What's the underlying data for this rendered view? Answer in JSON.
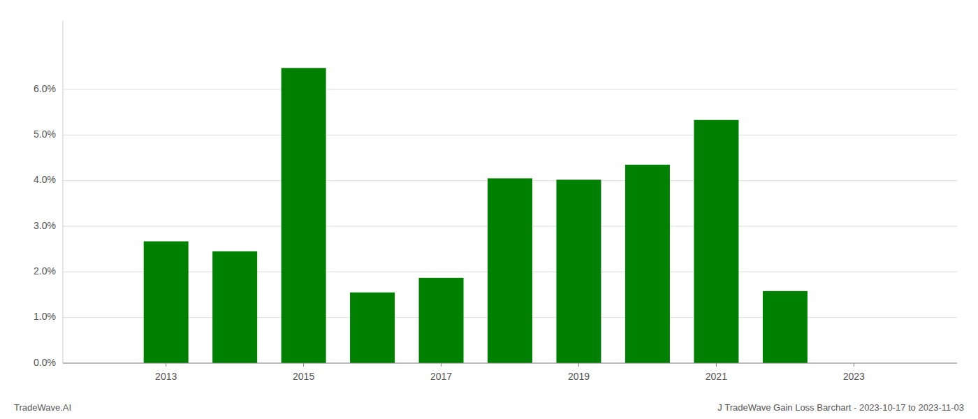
{
  "chart_data": {
    "type": "bar",
    "title": "J TradeWave Gain Loss Barchart - 2023-10-17 to 2023-11-03",
    "annotations": [
      "TradeWave.AI"
    ],
    "x": [
      2013,
      2014,
      2015,
      2016,
      2017,
      2018,
      2019,
      2020,
      2021,
      2022
    ],
    "values": [
      0.0267,
      0.0245,
      0.0647,
      0.0155,
      0.0187,
      0.0405,
      0.0402,
      0.0435,
      0.0533,
      0.0158
    ],
    "color": "#008000",
    "xlim": [
      2011.5,
      2024.5
    ],
    "xticks": [
      2013,
      2015,
      2017,
      2019,
      2021,
      2023
    ],
    "ylim": [
      0,
      0.075
    ],
    "yticks": [
      {
        "value": 0.0,
        "label": "0.0%"
      },
      {
        "value": 0.01,
        "label": "1.0%"
      },
      {
        "value": 0.02,
        "label": "2.0%"
      },
      {
        "value": 0.03,
        "label": "3.0%"
      },
      {
        "value": 0.04,
        "label": "4.0%"
      },
      {
        "value": 0.05,
        "label": "5.0%"
      },
      {
        "value": 0.06,
        "label": "6.0%"
      }
    ],
    "grid": true
  }
}
